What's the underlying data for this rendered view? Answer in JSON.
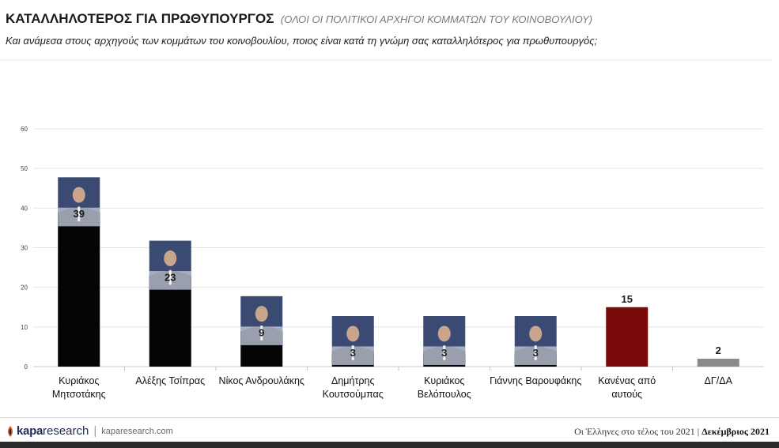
{
  "header": {
    "title": "ΚΑΤΑΛΛΗΛΟΤΕΡΟΣ ΓΙΑ ΠΡΩΘΥΠΟΥΡΓΟΣ",
    "subtitle": "(ΟΛΟΙ ΟΙ ΠΟΛΙΤΙΚΟΙ ΑΡΧΗΓΟΙ ΚΟΜΜΑΤΩΝ ΤΟΥ ΚΟΙΝΟΒΟΥΛΙΟΥ)",
    "question": "Και ανάμεσα στους αρχηγούς των κομμάτων του κοινοβουλίου, ποιος είναι κατά τη γνώμη σας καταλληλότερος για πρωθυπουργός;"
  },
  "chart_data": {
    "type": "bar",
    "categories": [
      [
        "Κυριάκος",
        "Μητσοτάκης"
      ],
      [
        "Αλέξης Τσίπρας"
      ],
      [
        "Νίκος Ανδρουλάκης"
      ],
      [
        "Δημήτρης",
        "Κουτσούμπας"
      ],
      [
        "Κυριάκος",
        "Βελόπουλος"
      ],
      [
        "Γιάννης Βαρουφάκης"
      ],
      [
        "Κανένας από",
        "αυτούς"
      ],
      [
        "ΔΓ/ΔΑ"
      ]
    ],
    "values": [
      39,
      23,
      9,
      3,
      3,
      3,
      15,
      2
    ],
    "value_labels": [
      "39",
      "23",
      "9",
      "3",
      "3",
      "3",
      "15",
      "2"
    ],
    "bar_colors": [
      "#050505",
      "#050505",
      "#050505",
      "#050505",
      "#050505",
      "#050505",
      "#7a0a0a",
      "#8a8a8a"
    ],
    "has_portrait": [
      true,
      true,
      true,
      true,
      true,
      true,
      false,
      false
    ],
    "ylim": [
      0,
      60
    ],
    "yticks": [
      "0",
      "10",
      "20",
      "30",
      "40",
      "50",
      "60"
    ],
    "grid": true,
    "legend": "none"
  },
  "footer": {
    "brand": "kapa",
    "brand_suffix": "research",
    "site": "kaparesearch.com",
    "caption": "Οι Έλληνες στο τέλος του 2021 | ",
    "date": "Δεκέμβριος 2021"
  },
  "colors": {
    "portrait_background": "#3a4a72",
    "suit": "#1f2b4a",
    "skin": "#c9a58c",
    "logo_accent": "#e2621b"
  }
}
